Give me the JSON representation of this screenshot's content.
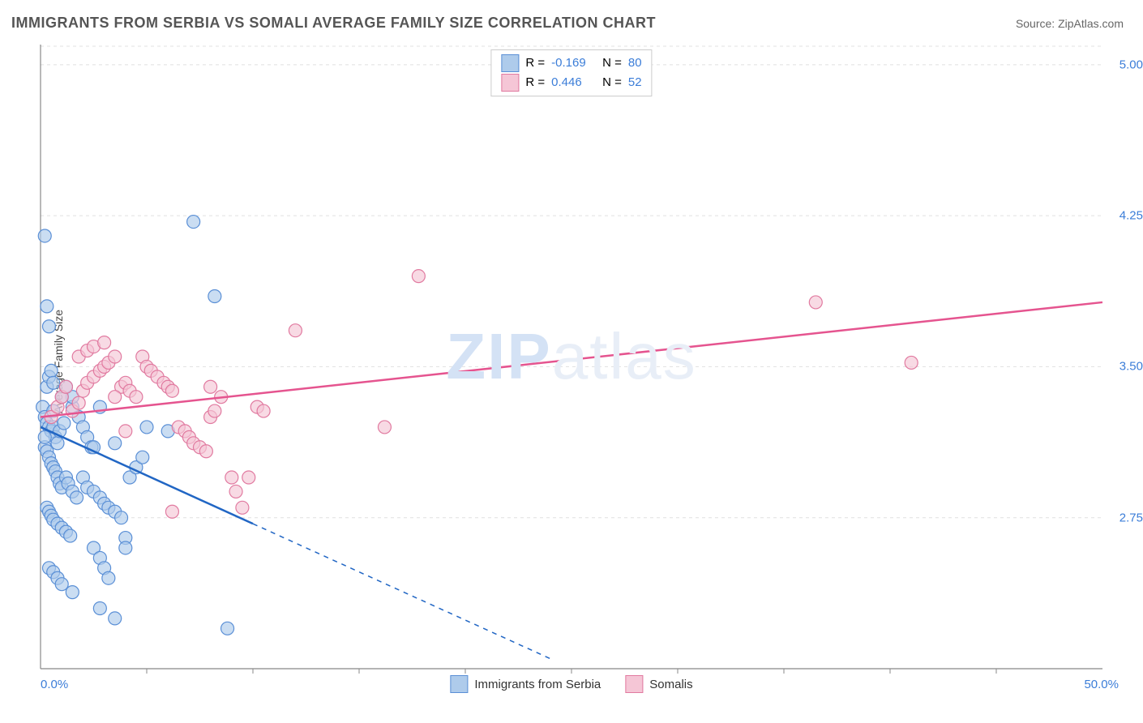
{
  "title": "IMMIGRANTS FROM SERBIA VS SOMALI AVERAGE FAMILY SIZE CORRELATION CHART",
  "source": "Source: ZipAtlas.com",
  "watermark_a": "ZIP",
  "watermark_b": "atlas",
  "y_axis_label": "Average Family Size",
  "chart": {
    "type": "scatter",
    "xlim": [
      0,
      50
    ],
    "ylim": [
      2.0,
      5.1
    ],
    "x_tick_start": "0.0%",
    "x_tick_end": "50.0%",
    "y_ticks": [
      2.75,
      3.5,
      4.25,
      5.0
    ],
    "y_tick_labels": [
      "2.75",
      "3.50",
      "4.25",
      "5.00"
    ],
    "x_minor_ticks": [
      5,
      10,
      15,
      20,
      25,
      30,
      35,
      40,
      45
    ],
    "grid_color": "#e0e0e0",
    "axis_color": "#888888",
    "background_color": "#ffffff",
    "series": [
      {
        "name": "Immigrants from Serbia",
        "label": "Immigrants from Serbia",
        "fill_color": "#aecbeb",
        "stroke_color": "#5a8fd6",
        "line_color": "#2166c4",
        "marker_radius": 8,
        "R_label": "R =",
        "R": "-0.169",
        "N_label": "N =",
        "N": "80",
        "trend_solid": {
          "x1": 0,
          "y1": 3.2,
          "x2": 10,
          "y2": 2.72
        },
        "trend_dash": {
          "x1": 10,
          "y1": 2.72,
          "x2": 24,
          "y2": 2.05
        },
        "points": [
          {
            "x": 0.2,
            "y": 4.15
          },
          {
            "x": 0.3,
            "y": 3.8
          },
          {
            "x": 0.4,
            "y": 3.7
          },
          {
            "x": 0.1,
            "y": 3.3
          },
          {
            "x": 0.2,
            "y": 3.25
          },
          {
            "x": 0.3,
            "y": 3.22
          },
          {
            "x": 0.4,
            "y": 3.2
          },
          {
            "x": 0.5,
            "y": 3.18
          },
          {
            "x": 0.6,
            "y": 3.2
          },
          {
            "x": 0.7,
            "y": 3.15
          },
          {
            "x": 0.8,
            "y": 3.12
          },
          {
            "x": 0.2,
            "y": 3.1
          },
          {
            "x": 0.3,
            "y": 3.08
          },
          {
            "x": 0.4,
            "y": 3.05
          },
          {
            "x": 0.5,
            "y": 3.02
          },
          {
            "x": 0.6,
            "y": 3.0
          },
          {
            "x": 0.7,
            "y": 2.98
          },
          {
            "x": 0.8,
            "y": 2.95
          },
          {
            "x": 0.9,
            "y": 2.92
          },
          {
            "x": 1.0,
            "y": 2.9
          },
          {
            "x": 1.2,
            "y": 2.95
          },
          {
            "x": 1.3,
            "y": 2.92
          },
          {
            "x": 1.5,
            "y": 2.88
          },
          {
            "x": 1.7,
            "y": 2.85
          },
          {
            "x": 0.3,
            "y": 2.8
          },
          {
            "x": 0.4,
            "y": 2.78
          },
          {
            "x": 0.5,
            "y": 2.76
          },
          {
            "x": 0.6,
            "y": 2.74
          },
          {
            "x": 0.8,
            "y": 2.72
          },
          {
            "x": 1.0,
            "y": 2.7
          },
          {
            "x": 1.2,
            "y": 2.68
          },
          {
            "x": 1.4,
            "y": 2.66
          },
          {
            "x": 1.8,
            "y": 3.25
          },
          {
            "x": 2.0,
            "y": 3.2
          },
          {
            "x": 2.2,
            "y": 3.15
          },
          {
            "x": 2.4,
            "y": 3.1
          },
          {
            "x": 2.0,
            "y": 2.95
          },
          {
            "x": 2.2,
            "y": 2.9
          },
          {
            "x": 2.5,
            "y": 2.88
          },
          {
            "x": 2.8,
            "y": 2.85
          },
          {
            "x": 3.0,
            "y": 2.82
          },
          {
            "x": 3.2,
            "y": 2.8
          },
          {
            "x": 3.5,
            "y": 2.78
          },
          {
            "x": 3.8,
            "y": 2.75
          },
          {
            "x": 2.5,
            "y": 2.6
          },
          {
            "x": 2.8,
            "y": 2.55
          },
          {
            "x": 3.0,
            "y": 2.5
          },
          {
            "x": 3.2,
            "y": 2.45
          },
          {
            "x": 4.0,
            "y": 2.65
          },
          {
            "x": 4.0,
            "y": 2.6
          },
          {
            "x": 4.2,
            "y": 2.95
          },
          {
            "x": 4.5,
            "y": 3.0
          },
          {
            "x": 4.8,
            "y": 3.05
          },
          {
            "x": 5.0,
            "y": 3.2
          },
          {
            "x": 1.5,
            "y": 3.3
          },
          {
            "x": 1.5,
            "y": 3.35
          },
          {
            "x": 0.3,
            "y": 3.4
          },
          {
            "x": 0.4,
            "y": 3.45
          },
          {
            "x": 0.5,
            "y": 3.48
          },
          {
            "x": 0.6,
            "y": 3.42
          },
          {
            "x": 2.8,
            "y": 3.3
          },
          {
            "x": 0.4,
            "y": 2.5
          },
          {
            "x": 0.6,
            "y": 2.48
          },
          {
            "x": 0.8,
            "y": 2.45
          },
          {
            "x": 1.0,
            "y": 2.42
          },
          {
            "x": 1.5,
            "y": 2.38
          },
          {
            "x": 2.8,
            "y": 2.3
          },
          {
            "x": 3.5,
            "y": 2.25
          },
          {
            "x": 7.2,
            "y": 4.22
          },
          {
            "x": 8.2,
            "y": 3.85
          },
          {
            "x": 8.8,
            "y": 2.2
          },
          {
            "x": 2.5,
            "y": 3.1
          },
          {
            "x": 3.5,
            "y": 3.12
          },
          {
            "x": 1.0,
            "y": 3.35
          },
          {
            "x": 1.2,
            "y": 3.4
          },
          {
            "x": 0.2,
            "y": 3.15
          },
          {
            "x": 0.6,
            "y": 3.28
          },
          {
            "x": 0.9,
            "y": 3.18
          },
          {
            "x": 1.1,
            "y": 3.22
          },
          {
            "x": 6.0,
            "y": 3.18
          }
        ]
      },
      {
        "name": "Somalis",
        "label": "Somalis",
        "fill_color": "#f5c6d6",
        "stroke_color": "#e17aa0",
        "line_color": "#e5548f",
        "marker_radius": 8,
        "R_label": "R =",
        "R": "0.446",
        "N_label": "N =",
        "N": "52",
        "trend_solid": {
          "x1": 0,
          "y1": 3.25,
          "x2": 50,
          "y2": 3.82
        },
        "points": [
          {
            "x": 0.5,
            "y": 3.25
          },
          {
            "x": 0.8,
            "y": 3.3
          },
          {
            "x": 1.0,
            "y": 3.35
          },
          {
            "x": 1.2,
            "y": 3.4
          },
          {
            "x": 1.5,
            "y": 3.28
          },
          {
            "x": 1.8,
            "y": 3.32
          },
          {
            "x": 2.0,
            "y": 3.38
          },
          {
            "x": 2.2,
            "y": 3.42
          },
          {
            "x": 2.5,
            "y": 3.45
          },
          {
            "x": 2.8,
            "y": 3.48
          },
          {
            "x": 3.0,
            "y": 3.5
          },
          {
            "x": 3.2,
            "y": 3.52
          },
          {
            "x": 3.5,
            "y": 3.55
          },
          {
            "x": 3.8,
            "y": 3.4
          },
          {
            "x": 4.0,
            "y": 3.42
          },
          {
            "x": 4.2,
            "y": 3.38
          },
          {
            "x": 4.5,
            "y": 3.35
          },
          {
            "x": 4.8,
            "y": 3.55
          },
          {
            "x": 5.0,
            "y": 3.5
          },
          {
            "x": 5.2,
            "y": 3.48
          },
          {
            "x": 5.5,
            "y": 3.45
          },
          {
            "x": 5.8,
            "y": 3.42
          },
          {
            "x": 6.0,
            "y": 3.4
          },
          {
            "x": 6.2,
            "y": 3.38
          },
          {
            "x": 6.5,
            "y": 3.2
          },
          {
            "x": 6.8,
            "y": 3.18
          },
          {
            "x": 7.0,
            "y": 3.15
          },
          {
            "x": 7.2,
            "y": 3.12
          },
          {
            "x": 7.5,
            "y": 3.1
          },
          {
            "x": 7.8,
            "y": 3.08
          },
          {
            "x": 8.0,
            "y": 3.25
          },
          {
            "x": 8.2,
            "y": 3.28
          },
          {
            "x": 8.0,
            "y": 3.4
          },
          {
            "x": 8.5,
            "y": 3.35
          },
          {
            "x": 9.0,
            "y": 2.95
          },
          {
            "x": 9.2,
            "y": 2.88
          },
          {
            "x": 9.5,
            "y": 2.8
          },
          {
            "x": 9.8,
            "y": 2.95
          },
          {
            "x": 6.2,
            "y": 2.78
          },
          {
            "x": 12.0,
            "y": 3.68
          },
          {
            "x": 10.2,
            "y": 3.3
          },
          {
            "x": 10.5,
            "y": 3.28
          },
          {
            "x": 16.2,
            "y": 3.2
          },
          {
            "x": 17.8,
            "y": 3.95
          },
          {
            "x": 36.5,
            "y": 3.82
          },
          {
            "x": 41.0,
            "y": 3.52
          },
          {
            "x": 1.8,
            "y": 3.55
          },
          {
            "x": 2.2,
            "y": 3.58
          },
          {
            "x": 2.5,
            "y": 3.6
          },
          {
            "x": 3.0,
            "y": 3.62
          },
          {
            "x": 3.5,
            "y": 3.35
          },
          {
            "x": 4.0,
            "y": 3.18
          }
        ]
      }
    ]
  }
}
